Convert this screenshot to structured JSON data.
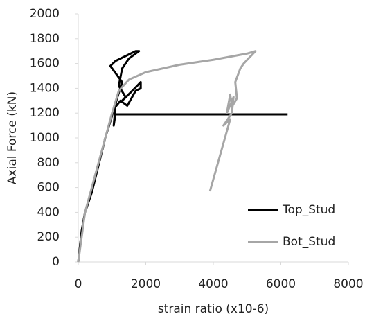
{
  "chart_data": {
    "type": "line",
    "x_label": "strain ratio (x10-6)",
    "y_label": "Axial Force (kN)",
    "xlim": [
      0,
      8000
    ],
    "ylim": [
      0,
      2000
    ],
    "xticks": [
      0,
      2000,
      4000,
      6000,
      8000
    ],
    "yticks": [
      0,
      200,
      400,
      600,
      800,
      1000,
      1200,
      1400,
      1600,
      1800,
      2000
    ],
    "legend_position": "right",
    "series": [
      {
        "name": "Top_Stud",
        "color": "#000000",
        "x": [
          0,
          100,
          200,
          400,
          600,
          800,
          1000,
          1150,
          1300,
          950,
          1100,
          1400,
          1700,
          1800,
          1500,
          1300,
          1200,
          1400,
          1300,
          1600,
          1850,
          1850,
          1700,
          1450,
          1250,
          1100,
          1050,
          1100,
          6200
        ],
        "values": [
          0,
          250,
          400,
          560,
          780,
          1000,
          1180,
          1320,
          1450,
          1580,
          1620,
          1660,
          1700,
          1700,
          1640,
          1560,
          1420,
          1330,
          1300,
          1380,
          1450,
          1400,
          1380,
          1260,
          1300,
          1250,
          1100,
          1190,
          1190
        ]
      },
      {
        "name": "Bot_Stud",
        "color": "#a6a6a6",
        "x": [
          0,
          200,
          500,
          800,
          1000,
          1200,
          1500,
          2000,
          3000,
          4000,
          5000,
          5250,
          4900,
          4800,
          4650,
          4700,
          4550,
          4500,
          4400,
          4600,
          4550,
          4300,
          4500,
          3900
        ],
        "values": [
          0,
          400,
          700,
          1000,
          1200,
          1380,
          1470,
          1530,
          1590,
          1630,
          1680,
          1700,
          1600,
          1560,
          1450,
          1320,
          1250,
          1350,
          1200,
          1330,
          1200,
          1100,
          1150,
          570
        ]
      }
    ]
  }
}
